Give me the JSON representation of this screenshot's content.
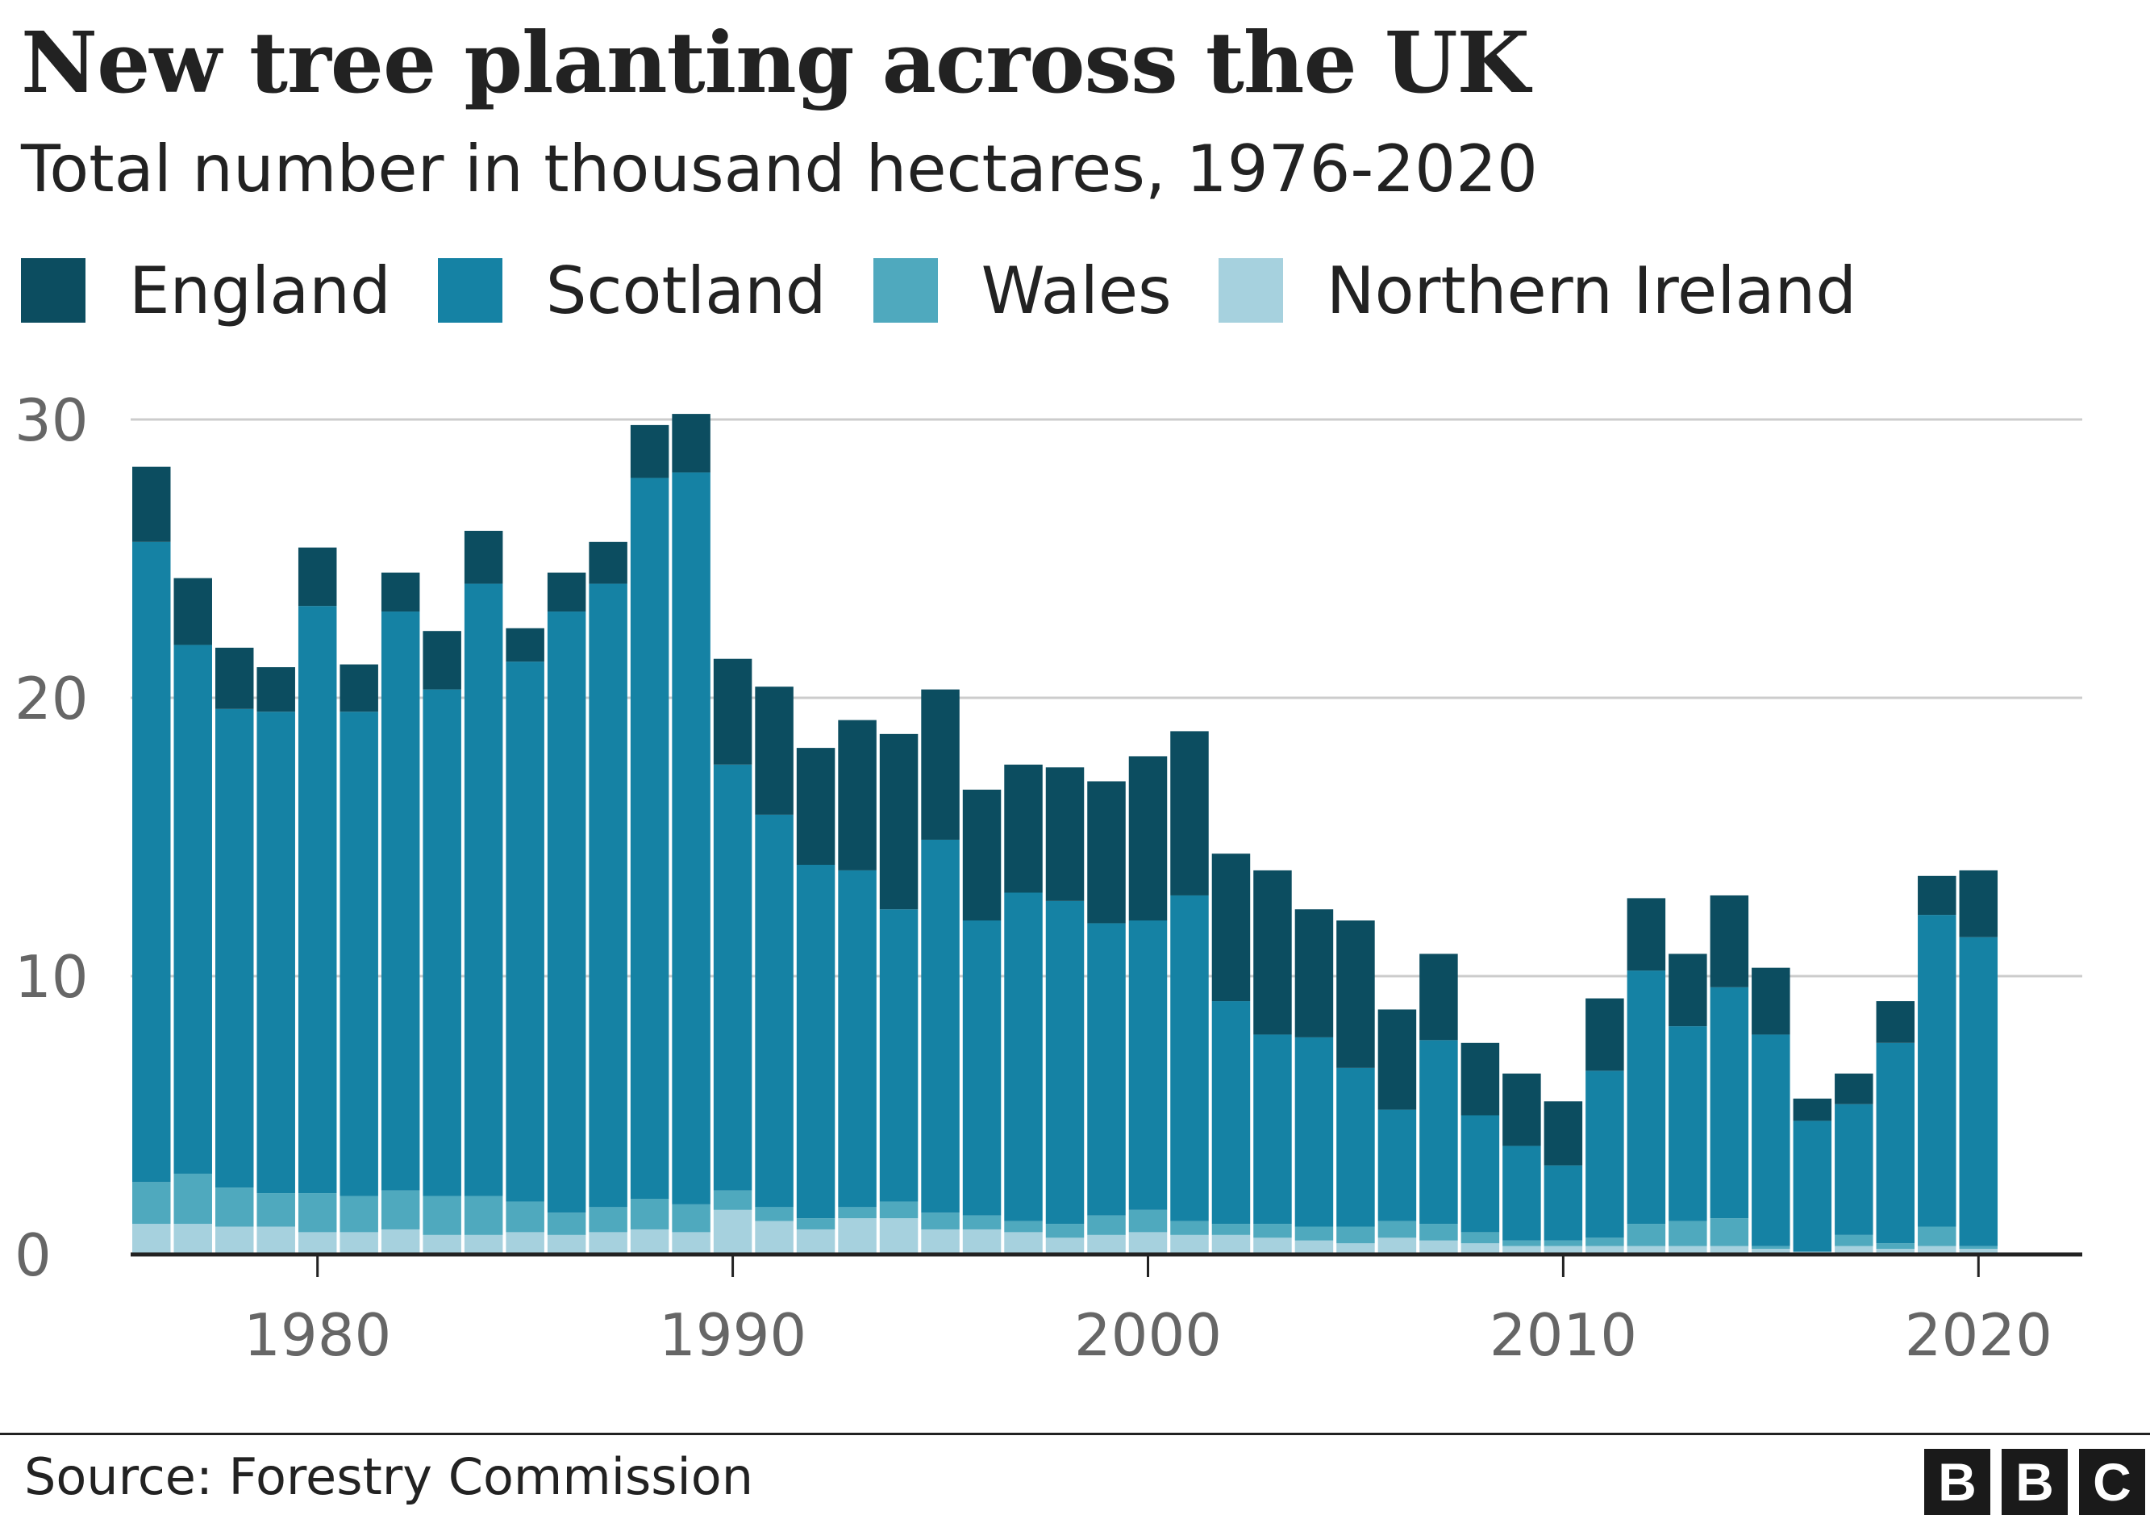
{
  "chart_data": {
    "type": "bar",
    "stacked": true,
    "title": "New tree planting across the UK",
    "subtitle": "Total number in thousand hectares, 1976-2020",
    "source": "Source: Forestry Commission",
    "xlabel": "",
    "ylabel": "",
    "ylim": [
      0,
      30
    ],
    "yticks": [
      0,
      10,
      20,
      30
    ],
    "xticks": [
      1980,
      1990,
      2000,
      2010,
      2020
    ],
    "grid": true,
    "legend_position": "top-left",
    "x": [
      1976,
      1977,
      1978,
      1979,
      1980,
      1981,
      1982,
      1983,
      1984,
      1985,
      1986,
      1987,
      1988,
      1989,
      1990,
      1991,
      1992,
      1993,
      1994,
      1995,
      1996,
      1997,
      1998,
      1999,
      2000,
      2001,
      2002,
      2003,
      2004,
      2005,
      2006,
      2007,
      2008,
      2009,
      2010,
      2011,
      2012,
      2013,
      2014,
      2015,
      2016,
      2017,
      2018,
      2019,
      2020
    ],
    "series": [
      {
        "name": "Northern Ireland",
        "color": "#a6d1de",
        "values": [
          1.1,
          1.1,
          1.0,
          1.0,
          0.8,
          0.8,
          0.9,
          0.7,
          0.7,
          0.8,
          0.7,
          0.8,
          0.9,
          0.8,
          1.6,
          1.2,
          0.9,
          1.3,
          1.3,
          0.9,
          0.9,
          0.8,
          0.6,
          0.7,
          0.8,
          0.7,
          0.7,
          0.6,
          0.5,
          0.4,
          0.6,
          0.5,
          0.4,
          0.3,
          0.3,
          0.3,
          0.3,
          0.3,
          0.3,
          0.2,
          0.1,
          0.3,
          0.2,
          0.3,
          0.2
        ]
      },
      {
        "name": "Wales",
        "color": "#4fa9be",
        "values": [
          1.5,
          1.8,
          1.4,
          1.2,
          1.4,
          1.3,
          1.4,
          1.4,
          1.4,
          1.1,
          0.8,
          0.9,
          1.1,
          1.0,
          0.7,
          0.5,
          0.4,
          0.4,
          0.6,
          0.6,
          0.5,
          0.4,
          0.5,
          0.7,
          0.8,
          0.5,
          0.4,
          0.5,
          0.5,
          0.6,
          0.6,
          0.6,
          0.4,
          0.2,
          0.2,
          0.3,
          0.8,
          0.9,
          1.0,
          0.1,
          0.0,
          0.4,
          0.2,
          0.7,
          0.1
        ]
      },
      {
        "name": "Scotland",
        "color": "#1582a4",
        "values": [
          23.0,
          19.0,
          17.2,
          17.3,
          21.1,
          17.4,
          20.8,
          18.2,
          22.0,
          19.4,
          21.6,
          22.4,
          25.9,
          26.3,
          15.3,
          14.1,
          12.7,
          12.1,
          10.5,
          13.4,
          10.6,
          11.8,
          11.6,
          10.5,
          10.4,
          11.7,
          8.0,
          6.8,
          6.8,
          5.7,
          4.0,
          6.6,
          4.2,
          3.4,
          2.7,
          6.0,
          9.1,
          7.0,
          8.3,
          7.6,
          4.7,
          4.7,
          7.2,
          11.2,
          11.1
        ]
      },
      {
        "name": "England",
        "color": "#0c4d60",
        "values": [
          2.7,
          2.4,
          2.2,
          1.6,
          2.1,
          1.7,
          1.4,
          2.1,
          1.9,
          1.2,
          1.4,
          1.5,
          1.9,
          2.1,
          3.8,
          4.6,
          4.2,
          5.4,
          6.3,
          5.4,
          4.7,
          4.6,
          4.8,
          5.1,
          5.9,
          5.9,
          5.3,
          5.9,
          4.6,
          5.3,
          3.6,
          3.1,
          2.6,
          2.6,
          2.3,
          2.6,
          2.6,
          2.6,
          3.3,
          2.4,
          0.8,
          1.1,
          1.5,
          1.4,
          2.4
        ]
      }
    ]
  },
  "footer": {
    "source": "Source: Forestry Commission",
    "logo_letters": [
      "B",
      "B",
      "C"
    ]
  }
}
